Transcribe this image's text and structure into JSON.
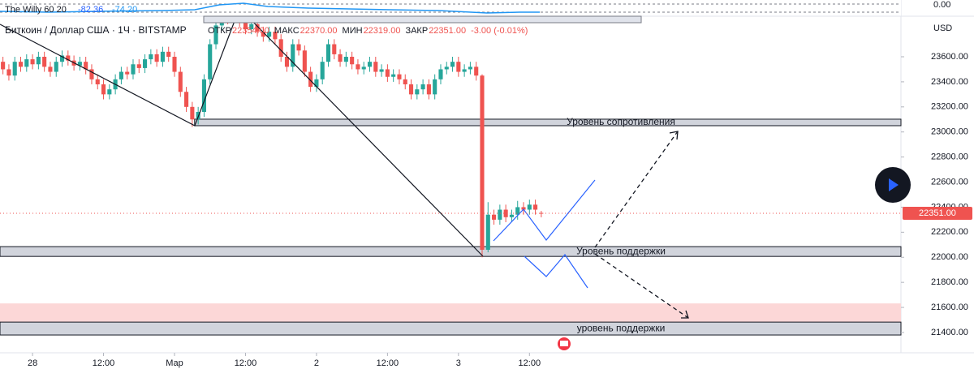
{
  "chart_data": {
    "type": "candlestick",
    "legend": {
      "symbol": "Биткоин / Доллар США · 1Ч · BITSTAMP",
      "fields": [
        {
          "key": "ОТКР",
          "value": "22354.00"
        },
        {
          "key": "МАКС",
          "value": "22370.00"
        },
        {
          "key": "МИН",
          "value": "22319.00"
        },
        {
          "key": "ЗАКР",
          "value": "22351.00"
        }
      ],
      "change": "-3.00 (-0.01%)"
    },
    "indicator": {
      "name": "The Willy 60 20",
      "readings": [
        "-82.36",
        "-74.20"
      ],
      "axis_label": "0.00"
    },
    "currency": "USD",
    "up_color": "#26a69a",
    "down_color": "#ef5350",
    "x": [
      -5,
      -4,
      -3,
      -2,
      -1,
      0,
      1,
      2,
      3,
      4,
      5,
      6,
      7,
      8,
      9,
      10,
      11,
      12,
      13,
      14,
      15,
      16,
      17,
      18,
      19,
      20,
      21,
      22,
      23,
      24,
      25,
      26,
      27,
      28,
      29,
      30,
      31,
      32,
      33,
      34,
      35,
      36,
      37,
      38,
      39,
      40,
      41,
      42,
      43,
      44,
      45,
      46,
      47,
      48,
      49,
      50,
      51,
      52,
      53,
      54,
      55,
      56,
      57,
      58,
      59,
      60,
      61,
      62,
      63,
      64,
      65,
      66,
      67,
      68,
      69,
      70,
      71,
      72,
      73,
      74,
      75,
      76,
      77,
      78,
      79,
      80,
      81,
      82,
      83,
      84,
      85,
      86
    ],
    "open": [
      23560,
      23500,
      23450,
      23560,
      23520,
      23580,
      23540,
      23600,
      23520,
      23480,
      23560,
      23610,
      23570,
      23530,
      23560,
      23500,
      23420,
      23380,
      23300,
      23340,
      23420,
      23480,
      23460,
      23540,
      23510,
      23580,
      23620,
      23560,
      23640,
      23600,
      23480,
      23320,
      23200,
      23100,
      23160,
      23420,
      23700,
      23850,
      23950,
      23900,
      24000,
      23880,
      23820,
      23860,
      23800,
      23760,
      23800,
      23740,
      23600,
      23520,
      23700,
      23650,
      23480,
      23360,
      23420,
      23560,
      23700,
      23620,
      23560,
      23600,
      23540,
      23500,
      23520,
      23560,
      23480,
      23500,
      23440,
      23460,
      23420,
      23380,
      23300,
      23340,
      23380,
      23300,
      23420,
      23500,
      23520,
      23560,
      23480,
      23500,
      23520,
      23450,
      22060,
      22340,
      22300,
      22380,
      22320,
      22340,
      22400,
      22380,
      22420,
      22354
    ],
    "high": [
      23600,
      23540,
      23600,
      23600,
      23620,
      23620,
      23640,
      23640,
      23560,
      23600,
      23650,
      23650,
      23610,
      23600,
      23600,
      23540,
      23460,
      23420,
      23380,
      23460,
      23520,
      23520,
      23580,
      23580,
      23620,
      23660,
      23660,
      23680,
      23680,
      23640,
      23520,
      23360,
      23240,
      23200,
      23460,
      23740,
      23890,
      23990,
      23990,
      24040,
      24040,
      23920,
      23900,
      23900,
      23840,
      23840,
      23840,
      23780,
      23640,
      23740,
      23740,
      23690,
      23520,
      23460,
      23600,
      23740,
      23740,
      23660,
      23640,
      23640,
      23580,
      23560,
      23600,
      23600,
      23540,
      23540,
      23500,
      23500,
      23460,
      23420,
      23380,
      23420,
      23420,
      23460,
      23540,
      23560,
      23600,
      23600,
      23540,
      23560,
      23560,
      23460,
      22440,
      22380,
      22420,
      22420,
      22380,
      22450,
      22440,
      22460,
      22460,
      22370
    ],
    "low": [
      23460,
      23410,
      23410,
      23480,
      23480,
      23500,
      23500,
      23480,
      23440,
      23440,
      23520,
      23530,
      23490,
      23490,
      23460,
      23380,
      23340,
      23260,
      23260,
      23300,
      23380,
      23420,
      23420,
      23470,
      23470,
      23540,
      23520,
      23520,
      23560,
      23440,
      23280,
      23160,
      23040,
      23060,
      23120,
      23380,
      23660,
      23810,
      23860,
      23860,
      23840,
      23780,
      23780,
      23760,
      23720,
      23720,
      23700,
      23560,
      23480,
      23480,
      23610,
      23440,
      23320,
      23320,
      23380,
      23520,
      23580,
      23520,
      23520,
      23500,
      23460,
      23460,
      23480,
      23440,
      23440,
      23400,
      23400,
      23380,
      23340,
      23260,
      23260,
      23300,
      23260,
      23260,
      23380,
      23460,
      23480,
      23440,
      23440,
      23460,
      23410,
      22000,
      22040,
      22260,
      22260,
      22280,
      22280,
      22300,
      22340,
      22340,
      22340,
      22319
    ],
    "close": [
      23500,
      23450,
      23560,
      23520,
      23580,
      23540,
      23600,
      23520,
      23480,
      23560,
      23610,
      23570,
      23530,
      23560,
      23500,
      23420,
      23380,
      23300,
      23340,
      23420,
      23480,
      23460,
      23540,
      23510,
      23580,
      23620,
      23560,
      23640,
      23600,
      23480,
      23320,
      23200,
      23100,
      23160,
      23420,
      23700,
      23850,
      23950,
      23900,
      24000,
      23880,
      23820,
      23860,
      23800,
      23760,
      23800,
      23740,
      23600,
      23520,
      23700,
      23650,
      23480,
      23360,
      23420,
      23560,
      23700,
      23620,
      23560,
      23600,
      23540,
      23500,
      23520,
      23560,
      23480,
      23500,
      23440,
      23460,
      23420,
      23380,
      23300,
      23340,
      23380,
      23300,
      23420,
      23500,
      23520,
      23560,
      23480,
      23500,
      23520,
      23450,
      22060,
      22340,
      22300,
      22380,
      22320,
      22340,
      22400,
      22380,
      22420,
      22380,
      22351
    ],
    "xlim": [
      -5.5,
      146.8
    ],
    "xticks": [
      {
        "value": 0,
        "label": "28"
      },
      {
        "value": 12,
        "label": "12:00"
      },
      {
        "value": 24,
        "label": "Мар"
      },
      {
        "value": 36,
        "label": "12:00"
      },
      {
        "value": 48,
        "label": "2"
      },
      {
        "value": 60,
        "label": "12:00"
      },
      {
        "value": 72,
        "label": "3"
      },
      {
        "value": 84,
        "label": "12:00"
      }
    ],
    "ylim": [
      21238,
      24053
    ],
    "yticks": [
      {
        "value": 21400,
        "label": "21400.00"
      },
      {
        "value": 21600,
        "label": "21600.00"
      },
      {
        "value": 21800,
        "label": "21800.00"
      },
      {
        "value": 22000,
        "label": "22000.00"
      },
      {
        "value": 22200,
        "label": "22200.00"
      },
      {
        "value": 22400,
        "label": "22400.00"
      },
      {
        "value": 22600,
        "label": "22600.00"
      },
      {
        "value": 22800,
        "label": "22800.00"
      },
      {
        "value": 23000,
        "label": "23000.00"
      },
      {
        "value": 23200,
        "label": "23200.00"
      },
      {
        "value": 23400,
        "label": "23400.00"
      },
      {
        "value": 23600,
        "label": "23600.00"
      }
    ],
    "last_price": {
      "value": 22351,
      "label": "22351.00"
    },
    "zones": [
      {
        "label": "Уровень сопротивления",
        "from": 23102,
        "to": 23050,
        "start": 27.4,
        "fill": "#d1d4dc"
      },
      {
        "label": "Уровень поддержки",
        "from": 22085,
        "to": 22007,
        "start": -5.5,
        "fill": "#d1d4dc"
      },
      {
        "from": 21632,
        "to": 21483,
        "start": -5.5,
        "fill": "#fcd7d7"
      },
      {
        "label": "уровень поддержки",
        "from": 21483,
        "to": 21380,
        "start": -5.5,
        "fill": "#d1d4dc"
      }
    ]
  }
}
